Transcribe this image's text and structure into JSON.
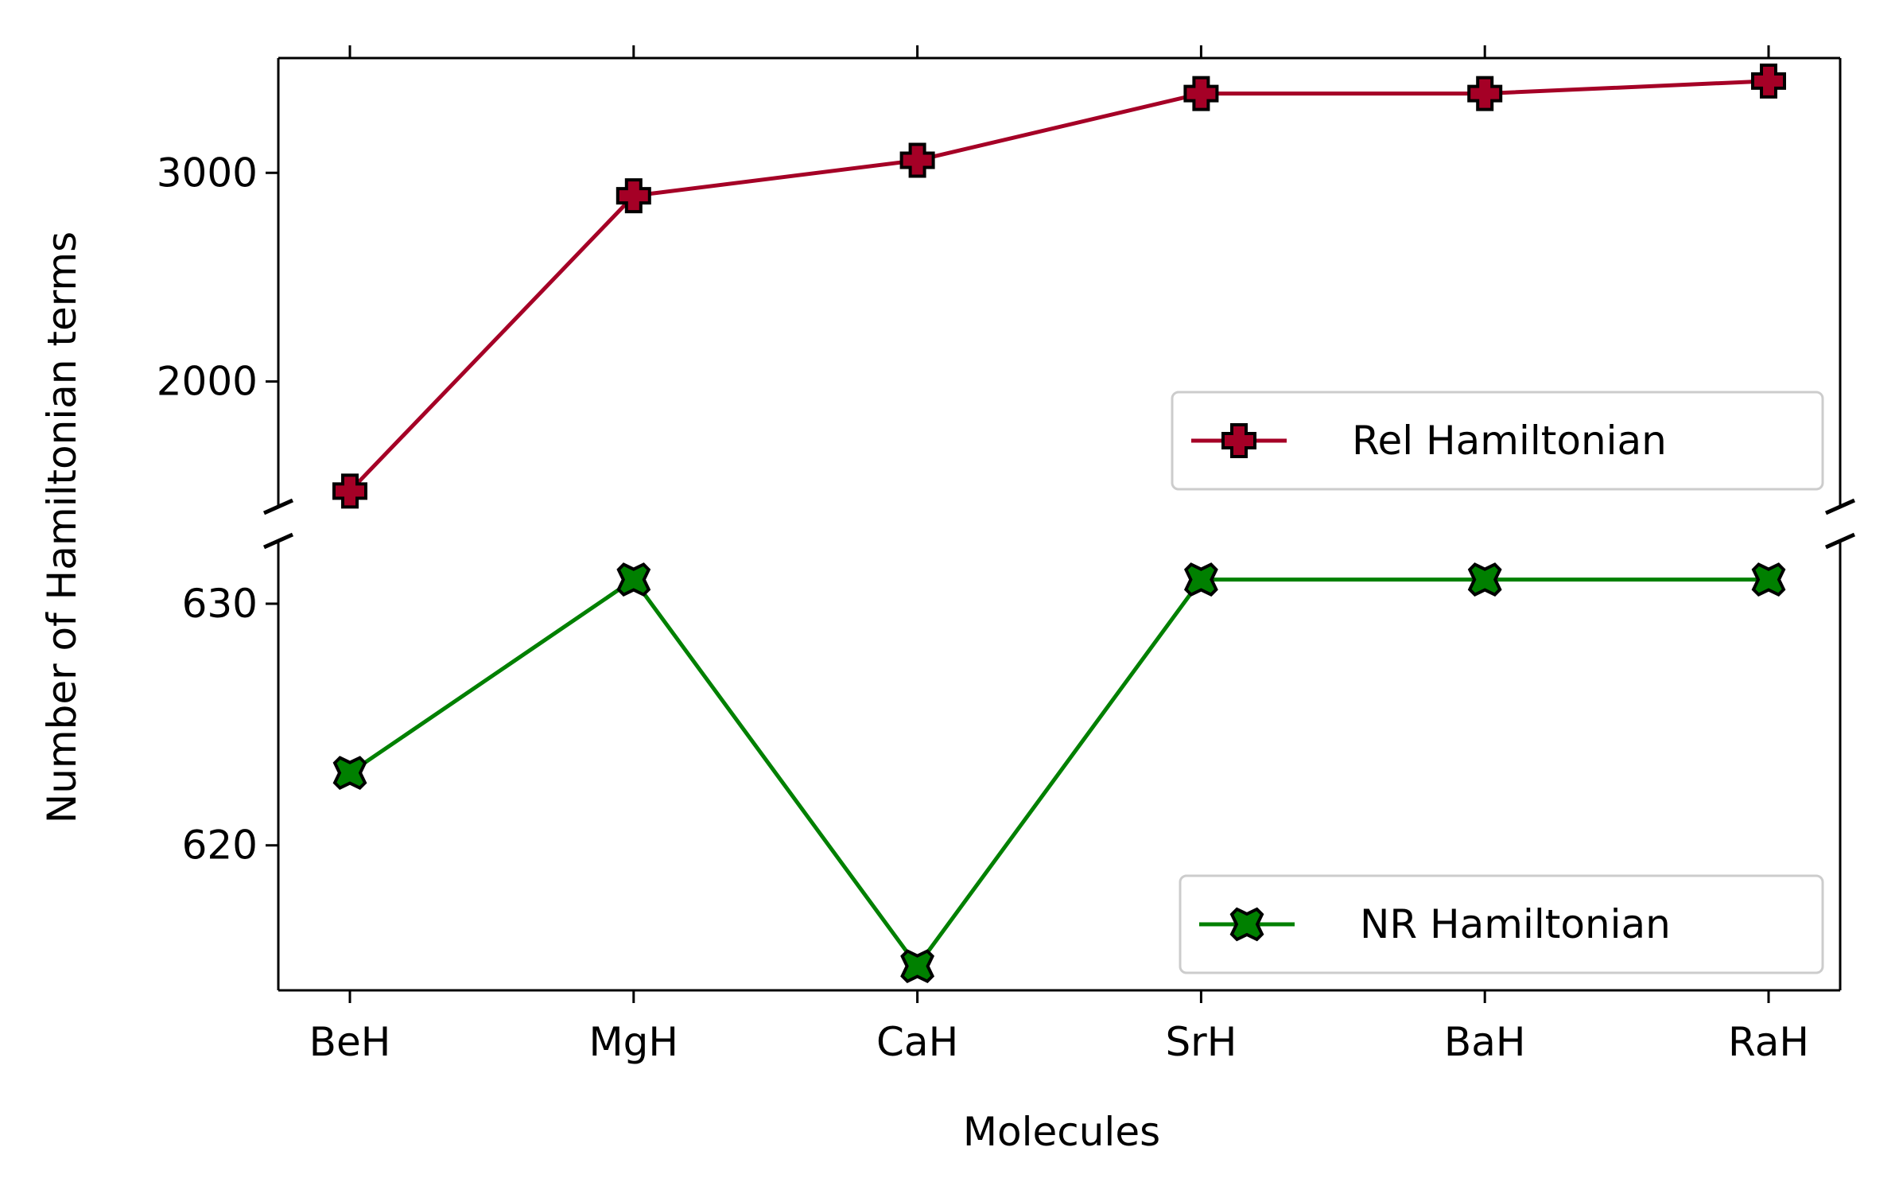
{
  "chart_data": {
    "type": "line",
    "layout": "broken-y-axis",
    "categories": [
      "BeH",
      "MgH",
      "CaH",
      "SrH",
      "BaH",
      "RaH"
    ],
    "xlabel": "Molecules",
    "ylabel": "Number of Hamiltonian terms",
    "grid": false,
    "panels": [
      {
        "id": "upper",
        "ylim": [
          1400,
          3550
        ],
        "yticks": [
          2000,
          3000
        ],
        "legend_position": "lower-right",
        "series": [
          {
            "name": "Rel Hamiltonian",
            "color": "#a50026",
            "marker": "plus-filled",
            "values": [
              1475,
              2890,
              3060,
              3380,
              3380,
              3440
            ]
          }
        ]
      },
      {
        "id": "lower",
        "ylim": [
          614,
          632.6
        ],
        "yticks": [
          620,
          630
        ],
        "legend_position": "lower-right",
        "series": [
          {
            "name": "NR Hamiltonian",
            "color": "#008000",
            "marker": "x-filled",
            "values": [
              623,
              631,
              615,
              631,
              631,
              631
            ]
          }
        ]
      }
    ]
  }
}
